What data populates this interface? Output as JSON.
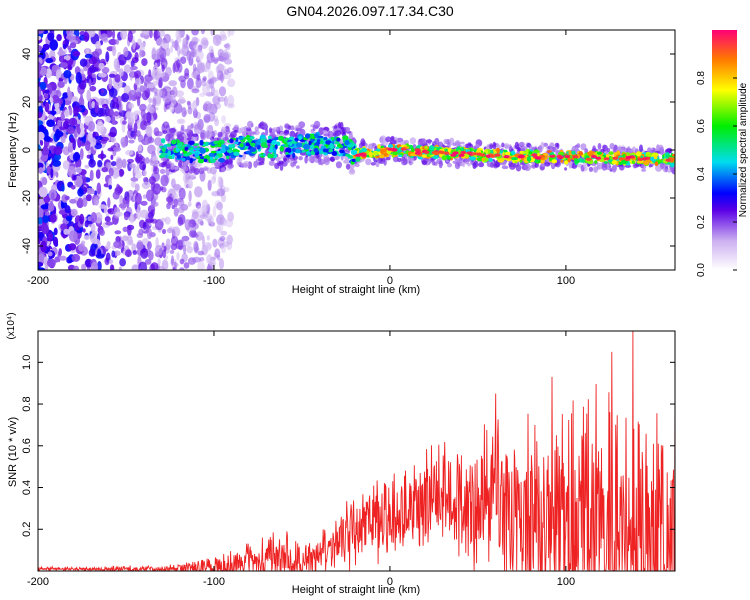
{
  "title": "GN04.2026.097.17.34.C30",
  "chart_data": [
    {
      "type": "heatmap",
      "name": "spectrogram",
      "xlabel": "Height of straight line (km)",
      "ylabel": "Frequency (Hz)",
      "xlim": [
        -200,
        162
      ],
      "ylim": [
        -50,
        50
      ],
      "x_ticks": [
        -200,
        -100,
        0,
        100
      ],
      "x_tick_labels": [
        "-200",
        "-100",
        "0",
        "100"
      ],
      "y_ticks": [
        -40,
        -20,
        0,
        20,
        40
      ],
      "y_tick_labels": [
        "-40",
        "-20",
        "0",
        "20",
        "40"
      ],
      "colorbar": {
        "label": "Normalized spectral amplitude",
        "range": [
          0,
          1
        ],
        "ticks": [
          0,
          0.2,
          0.4,
          0.6,
          0.8
        ],
        "tick_labels": [
          "0.0",
          "0.2",
          "0.4",
          "0.6",
          "0.8"
        ],
        "colormap_stops": [
          {
            "v": 0.0,
            "color": "#ffffff"
          },
          {
            "v": 0.12,
            "color": "#cdb2f0"
          },
          {
            "v": 0.25,
            "color": "#5a00e6"
          },
          {
            "v": 0.32,
            "color": "#0000ff"
          },
          {
            "v": 0.45,
            "color": "#00ddee"
          },
          {
            "v": 0.6,
            "color": "#00ee00"
          },
          {
            "v": 0.75,
            "color": "#ffff00"
          },
          {
            "v": 0.88,
            "color": "#ff7700"
          },
          {
            "v": 1.0,
            "color": "#ff0077"
          }
        ]
      },
      "structure": {
        "noise_region_km": [
          -200,
          -90
        ],
        "signal_band_km": [
          -130,
          162
        ],
        "signal_center_hz": [
          {
            "x": -130,
            "f": 0
          },
          {
            "x": -100,
            "f": -1
          },
          {
            "x": -80,
            "f": 2
          },
          {
            "x": -60,
            "f": 1
          },
          {
            "x": -40,
            "f": 3
          },
          {
            "x": -25,
            "f": 1
          },
          {
            "x": -20,
            "f": -2
          },
          {
            "x": 0,
            "f": 0
          },
          {
            "x": 50,
            "f": -2
          },
          {
            "x": 100,
            "f": -3
          },
          {
            "x": 162,
            "f": -4
          }
        ]
      }
    },
    {
      "type": "line",
      "name": "snr",
      "xlabel": "Height of straight line (km)",
      "ylabel": "SNR (10 * v/v)",
      "y_multiplier": "(x10⁴)",
      "xlim": [
        -200,
        162
      ],
      "ylim": [
        0,
        1.15
      ],
      "x_ticks": [
        -200,
        -100,
        0,
        100
      ],
      "x_tick_labels": [
        "-200",
        "-100",
        "0",
        "100"
      ],
      "y_ticks": [
        0.2,
        0.4,
        0.6,
        0.8,
        1.0
      ],
      "y_tick_labels": [
        "0.2",
        "0.4",
        "0.6",
        "0.8",
        "1.0"
      ],
      "color": "#ee2222",
      "envelope": [
        {
          "x": -200,
          "base": 0.01,
          "amp": 0.01
        },
        {
          "x": -130,
          "base": 0.01,
          "amp": 0.02
        },
        {
          "x": -100,
          "base": 0.02,
          "amp": 0.06
        },
        {
          "x": -80,
          "base": 0.04,
          "amp": 0.12
        },
        {
          "x": -60,
          "base": 0.06,
          "amp": 0.16
        },
        {
          "x": -45,
          "base": 0.05,
          "amp": 0.1
        },
        {
          "x": -35,
          "base": 0.1,
          "amp": 0.14
        },
        {
          "x": -20,
          "base": 0.22,
          "amp": 0.22
        },
        {
          "x": 0,
          "base": 0.25,
          "amp": 0.24
        },
        {
          "x": 30,
          "base": 0.38,
          "amp": 0.3
        },
        {
          "x": 60,
          "base": 0.3,
          "amp": 0.5
        },
        {
          "x": 100,
          "base": 0.25,
          "amp": 0.6
        },
        {
          "x": 135,
          "base": 0.2,
          "amp": 0.8
        },
        {
          "x": 162,
          "base": 0.2,
          "amp": 0.6
        }
      ],
      "peaks": [
        {
          "x": 138,
          "y": 1.15
        },
        {
          "x": 126,
          "y": 1.05
        },
        {
          "x": 92,
          "y": 0.93
        },
        {
          "x": 162,
          "y": 0.88
        },
        {
          "x": 60,
          "y": 0.85
        }
      ]
    }
  ]
}
